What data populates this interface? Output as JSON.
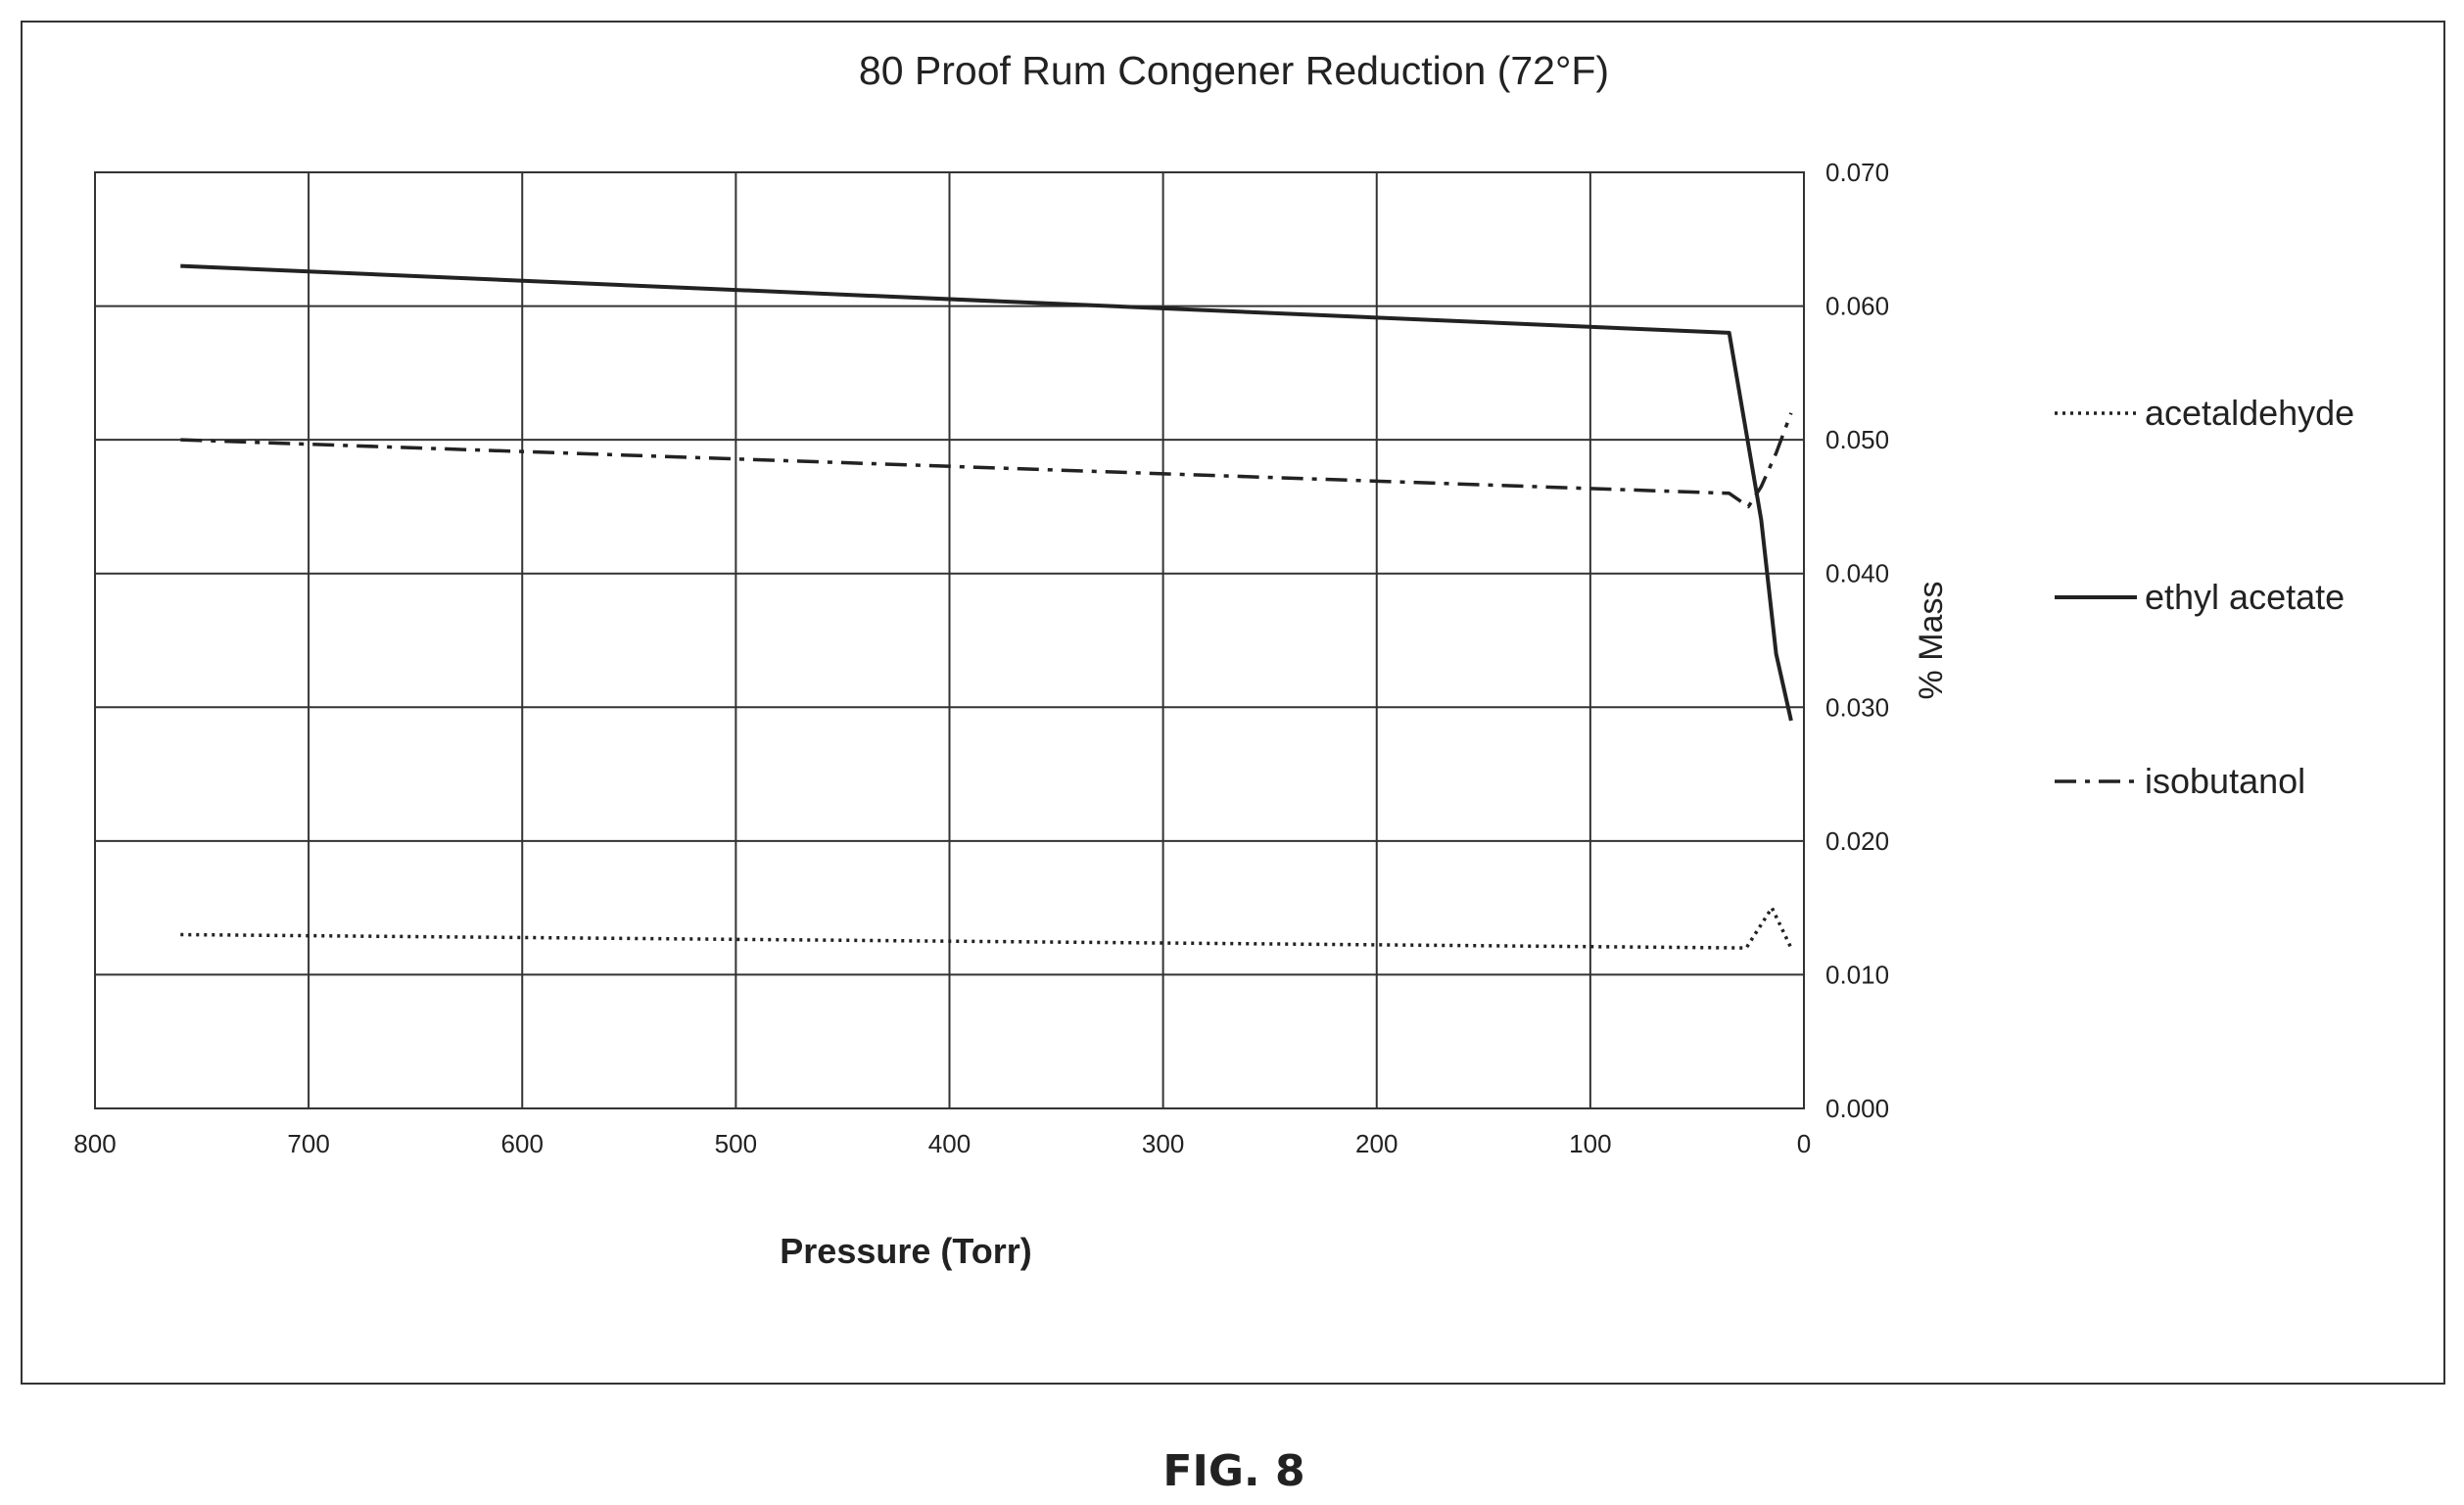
{
  "figure_label": "FIG. 8",
  "chart_data": {
    "type": "line",
    "title": "80 Proof Rum Congener Reduction (72°F)",
    "xlabel": "Pressure (Torr)",
    "ylabel": "% Mass",
    "xlim": [
      800,
      0
    ],
    "x_reversed": true,
    "ylim": [
      0,
      0.07
    ],
    "y_axis_position": "right",
    "grid": true,
    "legend_position": "right",
    "x_ticks": [
      "800",
      "700",
      "600",
      "500",
      "400",
      "300",
      "200",
      "100",
      "0"
    ],
    "y_ticks": [
      "0.000",
      "0.010",
      "0.020",
      "0.030",
      "0.040",
      "0.050",
      "0.060",
      "0.070"
    ],
    "series": [
      {
        "name": "acetaldehyde",
        "style": "dotted",
        "color": "#222222",
        "x": [
          760,
          27,
          15,
          6
        ],
        "y": [
          0.013,
          0.012,
          0.015,
          0.012
        ]
      },
      {
        "name": "ethyl acetate",
        "style": "solid",
        "color": "#222222",
        "x": [
          760,
          35,
          20,
          13,
          6
        ],
        "y": [
          0.063,
          0.058,
          0.044,
          0.034,
          0.029
        ]
      },
      {
        "name": "isobutanol",
        "style": "dashdot",
        "color": "#222222",
        "x": [
          760,
          35,
          26,
          20,
          13,
          6
        ],
        "y": [
          0.05,
          0.046,
          0.045,
          0.0465,
          0.049,
          0.052
        ]
      }
    ]
  }
}
